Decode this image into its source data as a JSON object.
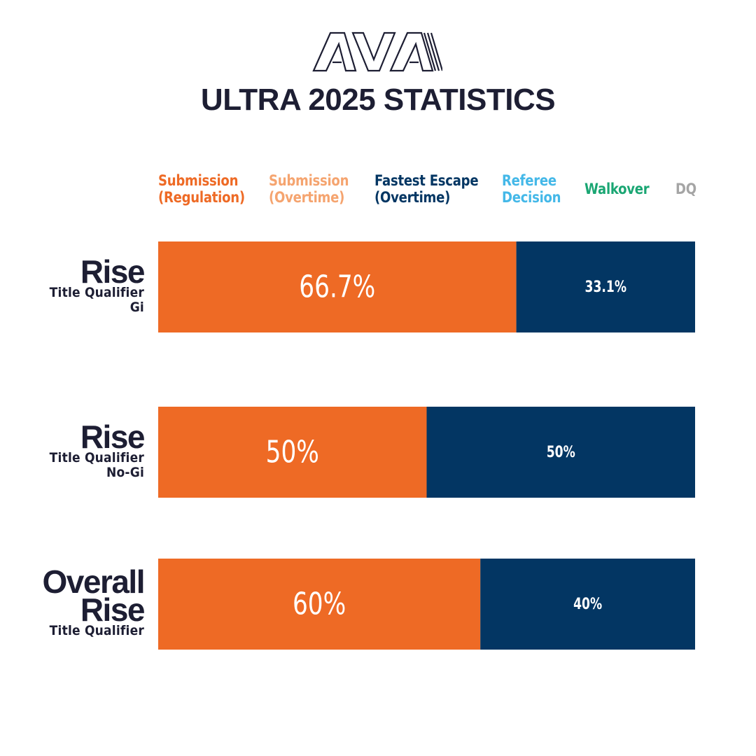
{
  "header": {
    "logo_text": "AVA",
    "title": "ULTRA 2025 STATISTICS"
  },
  "colors": {
    "submission_regulation": "#ee6a25",
    "submission_overtime": "#f5a46f",
    "fastest_escape_overtime": "#033663",
    "referee_decision": "#44b8e8",
    "walkover": "#1aa673",
    "dq": "#a5a5a5",
    "text_dark": "#1d1e33"
  },
  "legend": [
    {
      "lines": [
        "Submission",
        "(Regulation)"
      ],
      "color": "#ee6a25"
    },
    {
      "lines": [
        "Submission",
        "(Overtime)"
      ],
      "color": "#f5a46f"
    },
    {
      "lines": [
        "Fastest Escape",
        "(Overtime)"
      ],
      "color": "#033663"
    },
    {
      "lines": [
        "Referee",
        "Decision"
      ],
      "color": "#44b8e8"
    },
    {
      "lines": [
        "Walkover"
      ],
      "color": "#1aa673"
    },
    {
      "lines": [
        "DQ"
      ],
      "color": "#a5a5a5"
    }
  ],
  "rows": [
    {
      "title_lines": [
        "Rise"
      ],
      "subtitle_lines": [
        "Title Qualifier",
        "Gi"
      ]
    },
    {
      "title_lines": [
        "Rise"
      ],
      "subtitle_lines": [
        "Title Qualifier",
        "No-Gi"
      ]
    },
    {
      "title_lines": [
        "Overall",
        "Rise"
      ],
      "subtitle_lines": [
        "Title Qualifier"
      ]
    }
  ],
  "chart_data": {
    "type": "bar",
    "orientation": "horizontal",
    "stacked": true,
    "title": "ULTRA 2025 STATISTICS",
    "categories": [
      "Rise Title Qualifier Gi",
      "Rise Title Qualifier No-Gi",
      "Overall Rise Title Qualifier"
    ],
    "series": [
      {
        "name": "Submission (Regulation)",
        "color": "#ee6a25",
        "values": [
          66.7,
          50,
          60
        ],
        "labels": [
          "66.7%",
          "50%",
          "60%"
        ]
      },
      {
        "name": "Fastest Escape (Overtime)",
        "color": "#033663",
        "values": [
          33.1,
          50,
          40
        ],
        "labels": [
          "33.1%",
          "50%",
          "40%"
        ]
      }
    ],
    "xlim": [
      0,
      100
    ],
    "legend_position": "top"
  }
}
